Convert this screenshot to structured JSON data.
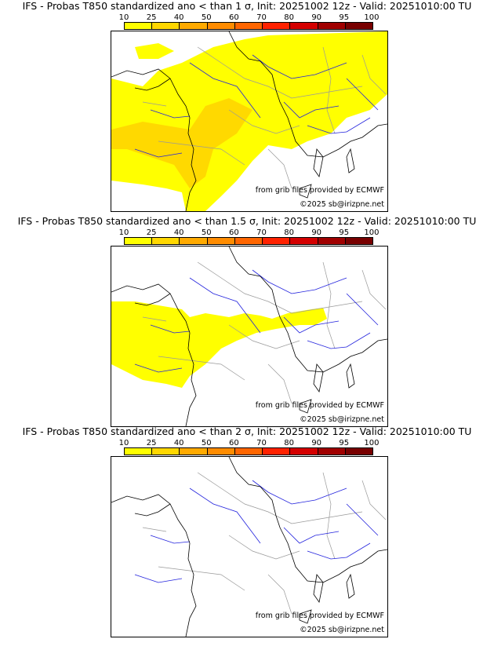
{
  "panels": [
    {
      "title": "IFS - Probas T850  standardized ano < than 1 σ, Init: 20251002 12z - Valid: 20251010:00 TU",
      "coverage": "wide"
    },
    {
      "title": "IFS - Probas T850  standardized ano < than 1.5 σ, Init: 20251002 12z - Valid: 20251010:00 TU",
      "coverage": "medium"
    },
    {
      "title": "IFS - Probas T850  standardized ano < than 2 σ, Init: 20251002 12z - Valid: 20251010:00 TU",
      "coverage": "none"
    }
  ],
  "colorbar": {
    "ticks": [
      "10",
      "25",
      "40",
      "50",
      "60",
      "70",
      "80",
      "90",
      "95",
      "100"
    ],
    "colors": [
      "#ffff00",
      "#ffd700",
      "#ffaa00",
      "#ff8c00",
      "#ff6600",
      "#ff2200",
      "#d40000",
      "#a00000",
      "#780000",
      "#560000"
    ]
  },
  "credit_source": "from grib files provided by ECMWF",
  "credit_copyright": "©2025 sb@irizpne.net"
}
